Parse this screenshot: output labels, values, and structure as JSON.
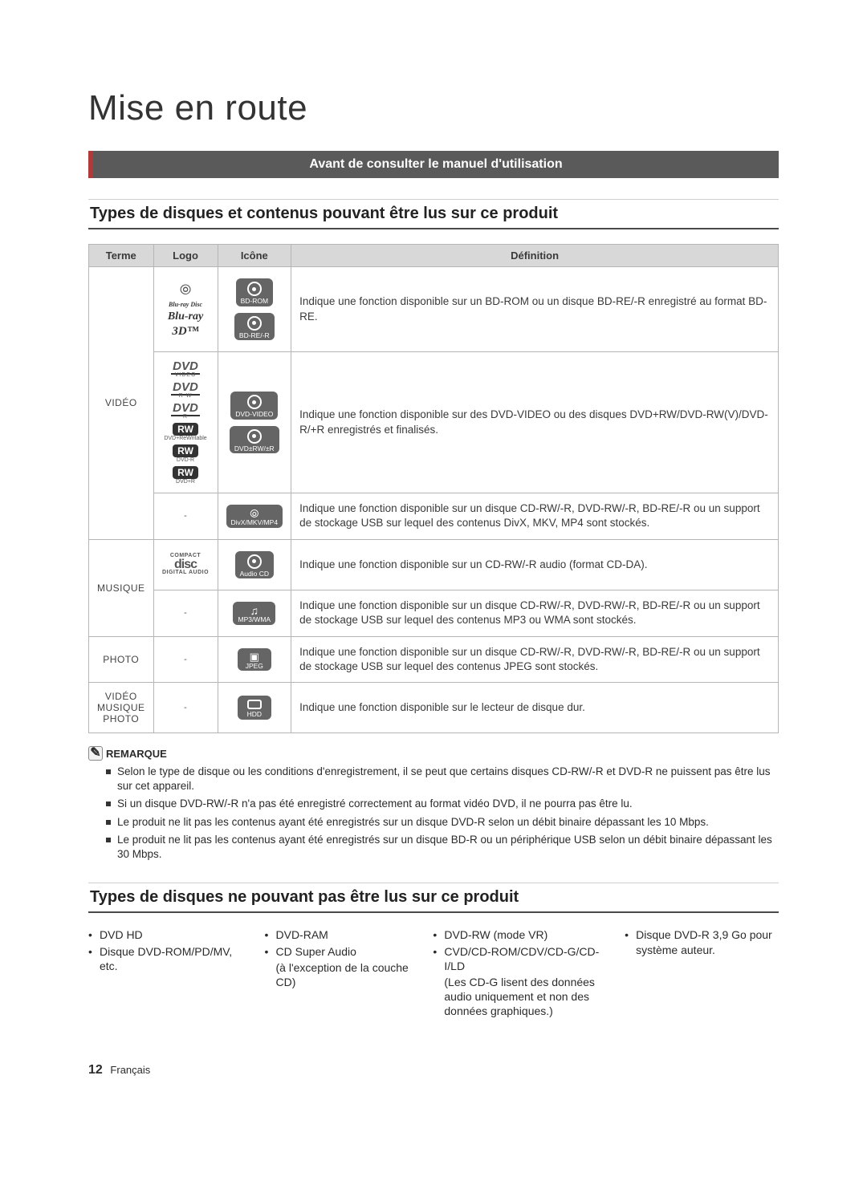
{
  "page": {
    "title": "Mise en route",
    "banner": "Avant de consulter le manuel d'utilisation",
    "h2_readable": "Types de disques et contenus pouvant être lus sur ce produit",
    "h2_unreadable": "Types de disques ne pouvant pas être lus sur ce produit"
  },
  "headers": {
    "terme": "Terme",
    "logo": "Logo",
    "icone": "Icône",
    "definition": "Définition"
  },
  "terms": {
    "video": "VIDÉO",
    "musique": "MUSIQUE",
    "photo": "PHOTO",
    "vmp_l1": "VIDÉO",
    "vmp_l2": "MUSIQUE",
    "vmp_l3": "PHOTO"
  },
  "logos": {
    "bluray_disc": "Blu-ray Disc",
    "bluray_3d": "Blu-ray",
    "bluray_3d_sub": "3D",
    "dvd": "DVD",
    "dvd_video": "VIDEO",
    "dvd_rw": "R W",
    "dvd_r": "R",
    "rw": "RW",
    "rw_sub1": "DVD+ReWritable",
    "rw_sub2": "DVD-R",
    "rw_sub3": "DVD+R",
    "cd_compact": "COMPACT",
    "cd_disc": "disc",
    "cd_digital": "DIGITAL AUDIO",
    "dash": "-"
  },
  "icons": {
    "bd_rom": "BD-ROM",
    "bd_re_r": "BD-RE/-R",
    "dvd_video": "DVD-VIDEO",
    "dvd_rw_r": "DVD±RW/±R",
    "divx": "DivX/MKV/MP4",
    "audio_cd": "Audio CD",
    "mp3_wma": "MP3/WMA",
    "jpeg": "JPEG",
    "hdd": "HDD"
  },
  "defs": {
    "bd": "Indique une fonction disponible sur un BD-ROM ou un disque BD-RE/-R enregistré au format BD-RE.",
    "dvd": "Indique une fonction disponible sur des DVD-VIDEO ou des disques DVD+RW/DVD-RW(V)/DVD-R/+R enregistrés et finalisés.",
    "divx": "Indique une fonction disponible sur un disque CD-RW/-R, DVD-RW/-R, BD-RE/-R ou un support de stockage USB sur lequel des contenus DivX, MKV, MP4 sont stockés.",
    "cdda": "Indique une fonction disponible sur un CD-RW/-R audio (format CD-DA).",
    "mp3": "Indique une fonction disponible sur un disque CD-RW/-R, DVD-RW/-R, BD-RE/-R ou un support de stockage USB sur lequel des contenus MP3 ou WMA sont stockés.",
    "jpeg": "Indique une fonction disponible sur un disque CD-RW/-R, DVD-RW/-R, BD-RE/-R ou un support de stockage USB sur lequel des contenus JPEG sont stockés.",
    "hdd": "Indique une fonction disponible sur le lecteur de disque dur."
  },
  "notes": {
    "label": "REMARQUE",
    "n1": "Selon le type de disque ou les conditions d'enregistrement, il se peut que certains disques CD-RW/-R et DVD-R ne puissent pas être lus sur cet appareil.",
    "n2": "Si un disque DVD-RW/-R n'a pas été enregistré correctement au format vidéo DVD, il ne pourra pas être lu.",
    "n3": "Le produit ne lit pas les contenus ayant été enregistrés sur un disque DVD-R selon un débit binaire dépassant les 10 Mbps.",
    "n4": "Le produit ne lit pas les contenus ayant été enregistrés sur un disque BD-R ou un périphérique USB selon un débit binaire dépassant les 30 Mbps."
  },
  "unreadable": {
    "c1_a": "DVD HD",
    "c1_b": "Disque DVD-ROM/PD/MV, etc.",
    "c2_a": "DVD-RAM",
    "c2_b": "CD Super Audio",
    "c2_b_sub": "(à l'exception de la couche CD)",
    "c3_a": "DVD-RW (mode VR)",
    "c3_b": "CVD/CD-ROM/CDV/CD-G/CD-I/LD",
    "c3_b_sub": "(Les CD-G lisent des données audio uniquement et non des données graphiques.)",
    "c4_a": "Disque DVD-R 3,9 Go pour système auteur."
  },
  "footer": {
    "page_num": "12",
    "lang": "Français"
  },
  "style": {
    "banner_bg": "#5a5a5a",
    "banner_accent": "#b03a3a",
    "table_header_bg": "#d8d8d8",
    "border_color": "#b5b5b5",
    "icon_bg": "#656565"
  }
}
